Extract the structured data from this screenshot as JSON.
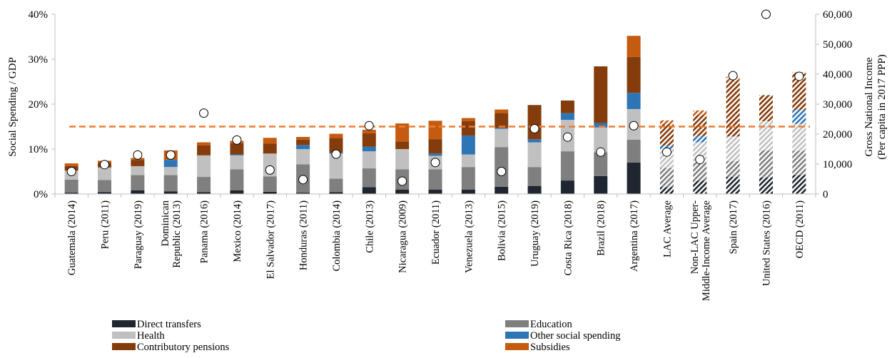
{
  "chart_data": {
    "type": "bar",
    "stacked": true,
    "ylabel": "Social Spending / GDP",
    "y2label_line1": "Gross National Income",
    "y2label_line2": "(Per capita in 2017 PPP)",
    "ylim": [
      0,
      40
    ],
    "y2lim": [
      0,
      60000
    ],
    "yticks": [
      "0%",
      "10%",
      "20%",
      "30%",
      "40%"
    ],
    "y2ticks": [
      "0",
      "10,000",
      "20,000",
      "30,000",
      "40,000",
      "50,000",
      "60,000"
    ],
    "reference_line_value": 15,
    "categories": [
      [
        "Guatemala (2014)"
      ],
      [
        "Peru (2011)"
      ],
      [
        "Paraguay (2019)"
      ],
      [
        "Dominican",
        "Republic (2013)"
      ],
      [
        "Panama (2016)"
      ],
      [
        "Mexico (2014)"
      ],
      [
        "El Salvador (2017)"
      ],
      [
        "Honduras (2011)"
      ],
      [
        "Colombia (2014)"
      ],
      [
        "Chile (2013)"
      ],
      [
        "Nicaragua (2009)"
      ],
      [
        "Ecuador (2011)"
      ],
      [
        "Venezuela (2013)"
      ],
      [
        "Bolivia (2015)"
      ],
      [
        "Uruguay (2019)"
      ],
      [
        "Costa Rica (2018)"
      ],
      [
        "Brazil (2018)"
      ],
      [
        "Argentina (2017)"
      ],
      [
        "LAC Average"
      ],
      [
        "Non-LAC Upper-",
        "Middle-Income Average"
      ],
      [
        "Spain (2017)"
      ],
      [
        "United States (2016)"
      ],
      [
        "OECD (2011)"
      ]
    ],
    "hatched_from_index": 18,
    "series": [
      {
        "name": "Direct transfers",
        "color": "#1f2630",
        "values": [
          0.3,
          0.4,
          0.8,
          0.6,
          0.4,
          0.8,
          0.5,
          0.3,
          0.4,
          1.5,
          1.0,
          1.0,
          1.0,
          1.6,
          1.8,
          3.0,
          4.0,
          7.0,
          1.5,
          3.0,
          3.8,
          3.7,
          4.2
        ]
      },
      {
        "name": "Education",
        "color": "#7f7f7f",
        "values": [
          2.9,
          2.7,
          3.4,
          3.6,
          3.4,
          4.7,
          3.4,
          6.3,
          3.0,
          4.2,
          4.5,
          4.5,
          5.0,
          8.8,
          4.2,
          6.5,
          5.3,
          5.1,
          4.3,
          4.0,
          3.5,
          6.0,
          5.4
        ]
      },
      {
        "name": "Health",
        "color": "#c0c0c0",
        "values": [
          2.0,
          2.8,
          2.0,
          1.8,
          4.8,
          3.1,
          5.1,
          3.4,
          5.6,
          3.8,
          4.5,
          3.0,
          2.8,
          4.1,
          5.5,
          7.0,
          5.5,
          6.8,
          4.0,
          4.5,
          5.5,
          6.5,
          6.0
        ]
      },
      {
        "name": "Other social spending",
        "color": "#2e75b6",
        "values": [
          0.0,
          0.0,
          0.0,
          1.6,
          0.0,
          0.2,
          0.0,
          0.9,
          0.2,
          1.0,
          0.0,
          0.5,
          4.2,
          0.2,
          0.7,
          1.5,
          1.0,
          3.6,
          1.0,
          1.4,
          0.0,
          0.0,
          3.1
        ]
      },
      {
        "name": "Contributory pensions",
        "color": "#843c0c",
        "values": [
          1.0,
          1.0,
          1.4,
          0.0,
          2.2,
          2.5,
          2.2,
          1.2,
          3.3,
          3.0,
          1.7,
          3.2,
          3.2,
          3.3,
          7.6,
          2.8,
          12.6,
          8.0,
          4.8,
          4.7,
          12.5,
          5.8,
          8.1
        ]
      },
      {
        "name": "Subsidies",
        "color": "#c55a11",
        "values": [
          0.6,
          0.5,
          0.4,
          2.1,
          0.7,
          0.5,
          1.3,
          0.6,
          0.9,
          0.8,
          4.0,
          4.1,
          0.7,
          0.8,
          0.0,
          0.0,
          0.0,
          4.7,
          0.8,
          1.0,
          0.8,
          0.0,
          0.3
        ]
      }
    ],
    "gni_per_capita": [
      7500,
      9800,
      13000,
      13000,
      27000,
      18000,
      8000,
      4800,
      13300,
      22800,
      4300,
      10500,
      null,
      7500,
      21800,
      19000,
      14000,
      22800,
      14000,
      11500,
      39500,
      60000,
      39300
    ],
    "legend": {
      "left_column": [
        "Direct transfers",
        "Health",
        "Contributory pensions"
      ],
      "right_column": [
        "Education",
        "Other social spending",
        "Subsidies"
      ],
      "placement": "bottom"
    },
    "colors": {
      "reference_line": "#ed7d31",
      "axis": "#bfbfbf",
      "marker_fill": "#ffffff",
      "marker_stroke": "#000000"
    }
  }
}
